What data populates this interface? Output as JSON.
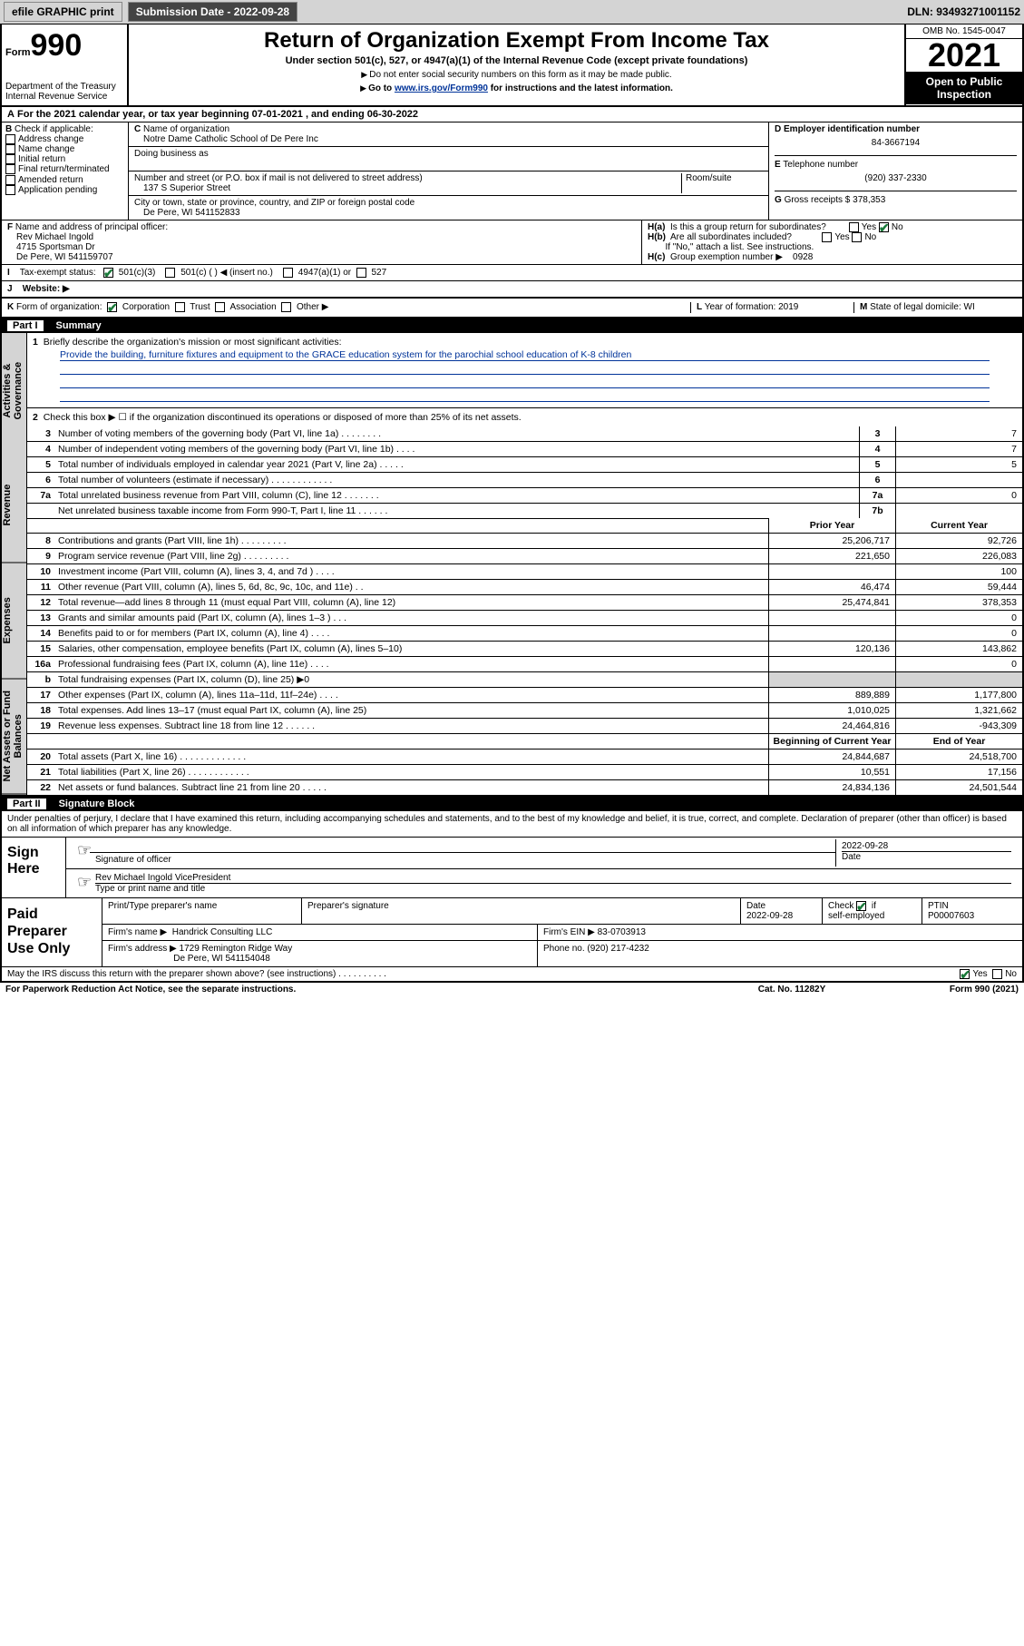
{
  "topbar": {
    "efile": "efile GRAPHIC print",
    "submission": "Submission Date - 2022-09-28",
    "dln": "DLN: 93493271001152"
  },
  "header": {
    "form_label": "Form",
    "form_num": "990",
    "dept": "Department of the Treasury\nInternal Revenue Service",
    "title": "Return of Organization Exempt From Income Tax",
    "sub": "Under section 501(c), 527, or 4947(a)(1) of the Internal Revenue Code (except private foundations)",
    "note1": "Do not enter social security numbers on this form as it may be made public.",
    "note2_pre": "Go to ",
    "note2_link": "www.irs.gov/Form990",
    "note2_post": " for instructions and the latest information.",
    "omb": "OMB No. 1545-0047",
    "year": "2021",
    "open": "Open to Public Inspection"
  },
  "periodA": "For the 2021 calendar year, or tax year beginning 07-01-2021  , and ending 06-30-2022",
  "B": {
    "label": "Check if applicable:",
    "opts": [
      "Address change",
      "Name change",
      "Initial return",
      "Final return/terminated",
      "Amended return",
      "Application pending"
    ]
  },
  "C": {
    "name_label": "Name of organization",
    "name": "Notre Dame Catholic School of De Pere Inc",
    "dba_label": "Doing business as",
    "addr_label": "Number and street (or P.O. box if mail is not delivered to street address)",
    "room_label": "Room/suite",
    "addr": "137 S Superior Street",
    "city_label": "City or town, state or province, country, and ZIP or foreign postal code",
    "city": "De Pere, WI  541152833"
  },
  "D": {
    "label": "Employer identification number",
    "value": "84-3667194"
  },
  "E": {
    "label": "Telephone number",
    "value": "(920) 337-2330"
  },
  "G": {
    "label": "Gross receipts $",
    "value": "378,353"
  },
  "F": {
    "label": "Name and address of principal officer:",
    "name": "Rev Michael Ingold",
    "addr": "4715 Sportsman Dr",
    "city": "De Pere, WI  541159707"
  },
  "H": {
    "a": "Is this a group return for subordinates?",
    "b": "Are all subordinates included?",
    "b_note": "If \"No,\" attach a list. See instructions.",
    "c": "Group exemption number ▶",
    "c_val": "0928"
  },
  "I": {
    "label": "Tax-exempt status:",
    "opts": [
      "501(c)(3)",
      "501(c) (   ) ◀ (insert no.)",
      "4947(a)(1) or",
      "527"
    ]
  },
  "J": {
    "label": "Website: ▶"
  },
  "K": {
    "label": "Form of organization:",
    "opts": [
      "Corporation",
      "Trust",
      "Association",
      "Other ▶"
    ]
  },
  "L": {
    "label": "Year of formation:",
    "value": "2019"
  },
  "M": {
    "label": "State of legal domicile:",
    "value": "WI"
  },
  "part1": {
    "title": "Part I",
    "name": "Summary",
    "q1": "Briefly describe the organization's mission or most significant activities:",
    "mission": "Provide the building, furniture fixtures and equipment to the GRACE education system for the parochial school education of K-8 children",
    "q2": "Check this box ▶ ☐  if the organization discontinued its operations or disposed of more than 25% of its net assets.",
    "side": [
      "Activities & Governance",
      "Revenue",
      "Expenses",
      "Net Assets or Fund Balances"
    ],
    "gov_lines": [
      {
        "n": "3",
        "d": "Number of voting members of the governing body (Part VI, line 1a)   .    .    .    .    .    .    .    .",
        "box": "3",
        "v": "7"
      },
      {
        "n": "4",
        "d": "Number of independent voting members of the governing body (Part VI, line 1b)   .    .    .    .",
        "box": "4",
        "v": "7"
      },
      {
        "n": "5",
        "d": "Total number of individuals employed in calendar year 2021 (Part V, line 2a)   .    .    .    .    .",
        "box": "5",
        "v": "5"
      },
      {
        "n": "6",
        "d": "Total number of volunteers (estimate if necessary)   .    .    .    .    .    .    .    .    .    .    .    .",
        "box": "6",
        "v": ""
      },
      {
        "n": "7a",
        "d": "Total unrelated business revenue from Part VIII, column (C), line 12   .    .    .    .    .    .    .",
        "box": "7a",
        "v": "0"
      },
      {
        "n": "",
        "d": "Net unrelated business taxable income from Form 990-T, Part I, line 11   .    .    .    .    .    .",
        "box": "7b",
        "v": ""
      }
    ],
    "col_prior": "Prior Year",
    "col_curr": "Current Year",
    "rev_lines": [
      {
        "n": "8",
        "d": "Contributions and grants (Part VIII, line 1h)   .    .    .    .    .    .    .    .    .",
        "p": "25,206,717",
        "c": "92,726"
      },
      {
        "n": "9",
        "d": "Program service revenue (Part VIII, line 2g)   .    .    .    .    .    .    .    .    .",
        "p": "221,650",
        "c": "226,083"
      },
      {
        "n": "10",
        "d": "Investment income (Part VIII, column (A), lines 3, 4, and 7d )   .    .    .    .",
        "p": "",
        "c": "100"
      },
      {
        "n": "11",
        "d": "Other revenue (Part VIII, column (A), lines 5, 6d, 8c, 9c, 10c, and 11e)   .    .",
        "p": "46,474",
        "c": "59,444"
      },
      {
        "n": "12",
        "d": "Total revenue—add lines 8 through 11 (must equal Part VIII, column (A), line 12)",
        "p": "25,474,841",
        "c": "378,353"
      }
    ],
    "exp_lines": [
      {
        "n": "13",
        "d": "Grants and similar amounts paid (Part IX, column (A), lines 1–3 )   .    .    .",
        "p": "",
        "c": "0"
      },
      {
        "n": "14",
        "d": "Benefits paid to or for members (Part IX, column (A), line 4)   .    .    .    .",
        "p": "",
        "c": "0"
      },
      {
        "n": "15",
        "d": "Salaries, other compensation, employee benefits (Part IX, column (A), lines 5–10)",
        "p": "120,136",
        "c": "143,862"
      },
      {
        "n": "16a",
        "d": "Professional fundraising fees (Part IX, column (A), line 11e)   .    .    .    .",
        "p": "",
        "c": "0"
      },
      {
        "n": "b",
        "d": "Total fundraising expenses (Part IX, column (D), line 25) ▶0",
        "p": "grey",
        "c": "grey"
      },
      {
        "n": "17",
        "d": "Other expenses (Part IX, column (A), lines 11a–11d, 11f–24e)   .    .    .    .",
        "p": "889,889",
        "c": "1,177,800"
      },
      {
        "n": "18",
        "d": "Total expenses. Add lines 13–17 (must equal Part IX, column (A), line 25)",
        "p": "1,010,025",
        "c": "1,321,662"
      },
      {
        "n": "19",
        "d": "Revenue less expenses. Subtract line 18 from line 12   .    .    .    .    .    .",
        "p": "24,464,816",
        "c": "-943,309"
      }
    ],
    "col_beg": "Beginning of Current Year",
    "col_end": "End of Year",
    "net_lines": [
      {
        "n": "20",
        "d": "Total assets (Part X, line 16)   .    .    .    .    .    .    .    .    .    .    .    .    .",
        "p": "24,844,687",
        "c": "24,518,700"
      },
      {
        "n": "21",
        "d": "Total liabilities (Part X, line 26)   .    .    .    .    .    .    .    .    .    .    .    .",
        "p": "10,551",
        "c": "17,156"
      },
      {
        "n": "22",
        "d": "Net assets or fund balances. Subtract line 21 from line 20   .    .    .    .    .",
        "p": "24,834,136",
        "c": "24,501,544"
      }
    ]
  },
  "part2": {
    "title": "Part II",
    "name": "Signature Block",
    "decl": "Under penalties of perjury, I declare that I have examined this return, including accompanying schedules and statements, and to the best of my knowledge and belief, it is true, correct, and complete. Declaration of preparer (other than officer) is based on all information of which preparer has any knowledge.",
    "sign_here": "Sign Here",
    "sig_officer": "Signature of officer",
    "sig_date_label": "Date",
    "sig_date": "2022-09-28",
    "officer_name": "Rev Michael Ingold  VicePresident",
    "officer_sub": "Type or print name and title",
    "paid": "Paid Preparer Use Only",
    "prep_name_label": "Print/Type preparer's name",
    "prep_sig_label": "Preparer's signature",
    "prep_date_label": "Date",
    "prep_date": "2022-09-28",
    "prep_check": "Check ☑ if self-employed",
    "ptin_label": "PTIN",
    "ptin": "P00007603",
    "firm_name_label": "Firm's name    ▶",
    "firm_name": "Handrick Consulting LLC",
    "firm_ein_label": "Firm's EIN ▶",
    "firm_ein": "83-0703913",
    "firm_addr_label": "Firm's address ▶",
    "firm_addr": "1729 Remington Ridge Way",
    "firm_city": "De Pere, WI  541154048",
    "firm_phone_label": "Phone no.",
    "firm_phone": "(920) 217-4232",
    "discuss": "May the IRS discuss this return with the preparer shown above? (see instructions)   .    .    .    .    .    .    .    .    .    .",
    "paperwork": "For Paperwork Reduction Act Notice, see the separate instructions.",
    "catno": "Cat. No. 11282Y",
    "formno": "Form 990 (2021)"
  }
}
